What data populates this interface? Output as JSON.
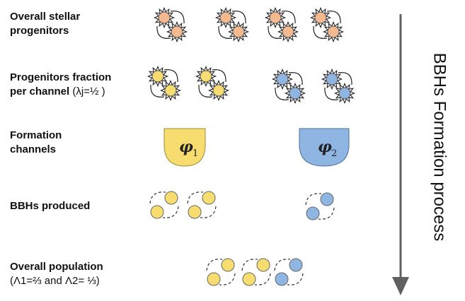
{
  "labels": {
    "overall_progenitors": [
      "Overall stellar",
      "progenitors"
    ],
    "progenitors_fraction": [
      "Progenitors fraction",
      "per channel"
    ],
    "lambda": "(λj=½ )",
    "formation_channels": [
      "Formation",
      "channels"
    ],
    "bbhs_produced": "BBHs produced",
    "overall_population": "Overall population",
    "population_fraction": "(Λ1=⅔ and Λ2= ⅓)"
  },
  "channels": [
    {
      "symbol": "φ",
      "index": "1",
      "color": "#f6d75e"
    },
    {
      "symbol": "φ",
      "index": "2",
      "color": "#7fa9d8"
    }
  ],
  "process_title": "BBHs Formation process",
  "colors": {
    "progenitor": "#f4b98f",
    "channel1": "#f7dc6f",
    "channel2": "#8fb6e2",
    "arrow": "#606060"
  }
}
